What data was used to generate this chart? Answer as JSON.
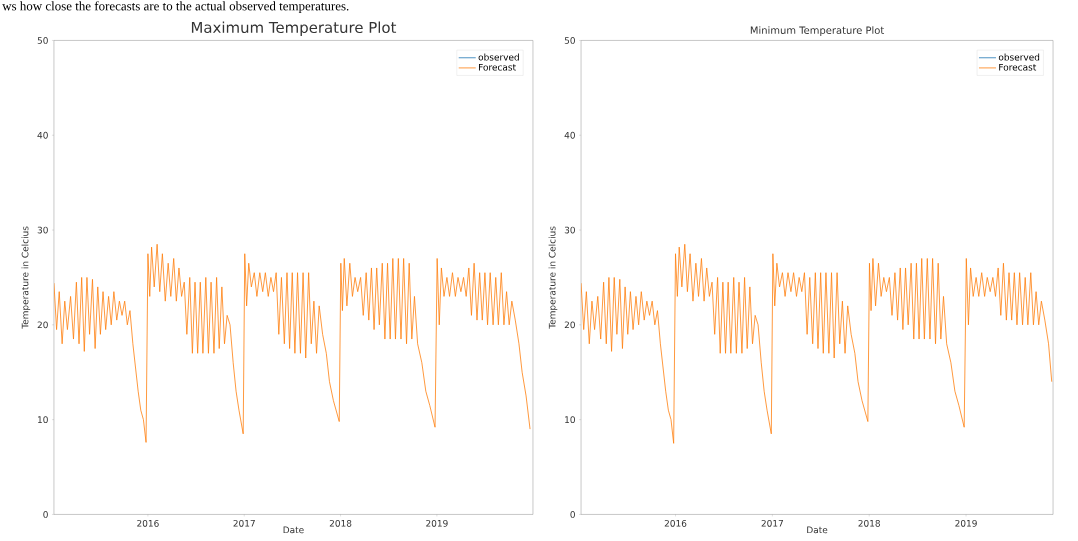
{
  "chart_data": [
    {
      "type": "line",
      "title": "Maximum Temperature Plot",
      "xlabel": "Date",
      "ylabel": "Temperature in Celcius",
      "annotations": [
        "ws how close the forecasts are to the actual observed temperatures."
      ],
      "xlim": [
        "2015-01-10",
        "2019-12-31"
      ],
      "ylim": [
        0,
        50
      ],
      "xticks": [
        "2016",
        "2017",
        "2018",
        "2019"
      ],
      "yticks": [
        0,
        10,
        20,
        30,
        40,
        50
      ],
      "legend": "top right",
      "marker": "none",
      "line_style": "solid",
      "x": [
        "2015-01-10",
        "2015-01-20",
        "2015-01-30",
        "2015-02-10",
        "2015-02-20",
        "2015-03-02",
        "2015-03-14",
        "2015-03-25",
        "2015-04-05",
        "2015-04-15",
        "2015-04-25",
        "2015-05-05",
        "2015-05-15",
        "2015-05-25",
        "2015-06-05",
        "2015-06-15",
        "2015-06-25",
        "2015-07-05",
        "2015-07-15",
        "2015-07-25",
        "2015-08-05",
        "2015-08-15",
        "2015-08-25",
        "2015-09-05",
        "2015-09-15",
        "2015-09-25",
        "2015-10-05",
        "2015-10-15",
        "2015-10-25",
        "2015-11-05",
        "2015-11-15",
        "2015-11-25",
        "2015-12-05",
        "2015-12-15",
        "2015-12-25",
        "2016-01-01",
        "2016-01-08",
        "2016-01-15",
        "2016-01-25",
        "2016-02-05",
        "2016-02-15",
        "2016-02-25",
        "2016-03-07",
        "2016-03-18",
        "2016-03-28",
        "2016-04-08",
        "2016-04-18",
        "2016-04-28",
        "2016-05-08",
        "2016-05-18",
        "2016-05-28",
        "2016-06-08",
        "2016-06-18",
        "2016-06-28",
        "2016-07-08",
        "2016-07-18",
        "2016-07-28",
        "2016-08-08",
        "2016-08-18",
        "2016-08-28",
        "2016-09-08",
        "2016-09-18",
        "2016-09-28",
        "2016-10-08",
        "2016-10-18",
        "2016-10-28",
        "2016-11-08",
        "2016-11-20",
        "2016-12-01",
        "2016-12-12",
        "2016-12-28",
        "2017-01-03",
        "2017-01-10",
        "2017-01-18",
        "2017-01-28",
        "2017-02-08",
        "2017-02-18",
        "2017-03-01",
        "2017-03-12",
        "2017-03-22",
        "2017-04-02",
        "2017-04-12",
        "2017-04-22",
        "2017-05-02",
        "2017-05-12",
        "2017-05-22",
        "2017-06-02",
        "2017-06-12",
        "2017-06-22",
        "2017-07-02",
        "2017-07-12",
        "2017-07-22",
        "2017-08-02",
        "2017-08-12",
        "2017-08-22",
        "2017-09-02",
        "2017-09-12",
        "2017-09-22",
        "2017-10-02",
        "2017-10-12",
        "2017-10-25",
        "2017-11-08",
        "2017-11-20",
        "2017-12-05",
        "2017-12-27",
        "2018-01-02",
        "2018-01-08",
        "2018-01-15",
        "2018-01-25",
        "2018-02-05",
        "2018-02-15",
        "2018-02-25",
        "2018-03-07",
        "2018-03-18",
        "2018-03-28",
        "2018-04-08",
        "2018-04-18",
        "2018-04-28",
        "2018-05-08",
        "2018-05-18",
        "2018-05-28",
        "2018-06-08",
        "2018-06-18",
        "2018-06-28",
        "2018-07-08",
        "2018-07-18",
        "2018-07-28",
        "2018-08-08",
        "2018-08-18",
        "2018-08-28",
        "2018-09-08",
        "2018-09-18",
        "2018-09-28",
        "2018-10-08",
        "2018-10-20",
        "2018-11-05",
        "2018-11-20",
        "2018-12-05",
        "2018-12-25",
        "2019-01-02",
        "2019-01-10",
        "2019-01-18",
        "2019-01-28",
        "2019-02-08",
        "2019-02-18",
        "2019-03-01",
        "2019-03-12",
        "2019-03-22",
        "2019-04-02",
        "2019-04-12",
        "2019-04-22",
        "2019-05-02",
        "2019-05-12",
        "2019-05-22",
        "2019-06-02",
        "2019-06-12",
        "2019-06-22",
        "2019-07-02",
        "2019-07-12",
        "2019-07-22",
        "2019-08-02",
        "2019-08-12",
        "2019-08-22",
        "2019-09-02",
        "2019-09-12",
        "2019-09-22",
        "2019-10-02",
        "2019-10-12",
        "2019-10-25",
        "2019-11-08",
        "2019-11-20",
        "2019-12-05",
        "2019-12-20"
      ],
      "series": [
        {
          "name": "observed",
          "color": "#1f77b4",
          "values": [
            null,
            null,
            null,
            null,
            null,
            null,
            null,
            null,
            null,
            null,
            null,
            null,
            null,
            null,
            null,
            null,
            null,
            null,
            null,
            null,
            null,
            null,
            null,
            null,
            null,
            null,
            null,
            null,
            null,
            null,
            null,
            null,
            null,
            null,
            null,
            null,
            null,
            null,
            null,
            null,
            null,
            null,
            null,
            null,
            null,
            null,
            null,
            null,
            null,
            null,
            null,
            null,
            null,
            null,
            null,
            null,
            null,
            null,
            null,
            null,
            null,
            null,
            null,
            null,
            null,
            null,
            null,
            null,
            null,
            null,
            null,
            null,
            null,
            null,
            null,
            null,
            null,
            null,
            null,
            null,
            null,
            null,
            null,
            null,
            null,
            null,
            null,
            null,
            null,
            null,
            null,
            null,
            null,
            null,
            null,
            null,
            null,
            null,
            null,
            null,
            null,
            null,
            null,
            null,
            null,
            null,
            null,
            null,
            null,
            null,
            null,
            null,
            null,
            null,
            null,
            null,
            null,
            null,
            null,
            null,
            null,
            null,
            null,
            null,
            null,
            null,
            null,
            null,
            null,
            null,
            null,
            null,
            null,
            null,
            null,
            null,
            null,
            null,
            null,
            null,
            null,
            null,
            null,
            null,
            null,
            null,
            null,
            null,
            null,
            null,
            null,
            null,
            null,
            null,
            null,
            null,
            null,
            null,
            null,
            null,
            null,
            null,
            null,
            null,
            null,
            null,
            null,
            null,
            null,
            null,
            null,
            null,
            null
          ]
        },
        {
          "name": "Forecast",
          "color": "#ff7f0e",
          "values": [
            24.4,
            19.5,
            23.5,
            18,
            22.5,
            19.5,
            23,
            18.5,
            24.5,
            18,
            25,
            17.2,
            25,
            19,
            24.8,
            17.5,
            24,
            19,
            23.5,
            19.5,
            23,
            20,
            23.5,
            20.5,
            22.5,
            21,
            22.5,
            20,
            21.5,
            18,
            15.5,
            13,
            11,
            10,
            7.6,
            27.5,
            23,
            28.2,
            24,
            28.5,
            23.5,
            27.5,
            22.5,
            26.5,
            23,
            27,
            22.5,
            26,
            23,
            24.5,
            19,
            25,
            17,
            24.5,
            17,
            24.5,
            17,
            25,
            17,
            24.5,
            17,
            25,
            17.5,
            24,
            18,
            21,
            20,
            16,
            13,
            11,
            8.5,
            27.5,
            22,
            26.5,
            24,
            25.5,
            23,
            25.5,
            23.5,
            25.5,
            23,
            25,
            23.5,
            25.5,
            19,
            25,
            18,
            25.5,
            17.5,
            25.5,
            17,
            25.5,
            17,
            25.5,
            16.5,
            25.5,
            18,
            22.5,
            17,
            22,
            19,
            17,
            14,
            12,
            9.8,
            26.5,
            21.5,
            27,
            22,
            26.5,
            23,
            25,
            23.5,
            25,
            21,
            25.5,
            20.5,
            26,
            19.5,
            26,
            20,
            26.5,
            18.5,
            26.5,
            18.5,
            27,
            18.5,
            27,
            18.5,
            27,
            18,
            26.5,
            18.5,
            23,
            18,
            16,
            13,
            11.5,
            9.2,
            27,
            20,
            26,
            23,
            25,
            23,
            25.5,
            23,
            25,
            23.5,
            25,
            23,
            26,
            21,
            26.5,
            20.5,
            25.5,
            20.5,
            25.5,
            20,
            25.5,
            20,
            25,
            20,
            25.5,
            20,
            23.5,
            20,
            22.5,
            20.5,
            18,
            15,
            12.5,
            9
          ]
        }
      ]
    },
    {
      "type": "line",
      "title": "Minimum Temperature Plot",
      "xlabel": "Date",
      "ylabel": "Temperature in Celcius",
      "xlim": [
        "2015-01-10",
        "2019-11-25"
      ],
      "ylim": [
        0,
        50
      ],
      "xticks": [
        "2016",
        "2017",
        "2018",
        "2019"
      ],
      "yticks": [
        0,
        10,
        20,
        30,
        40,
        50
      ],
      "legend": "top right",
      "marker": "none",
      "line_style": "solid",
      "x": [
        "2015-01-10",
        "2015-01-20",
        "2015-01-30",
        "2015-02-10",
        "2015-02-20",
        "2015-03-02",
        "2015-03-14",
        "2015-03-25",
        "2015-04-05",
        "2015-04-15",
        "2015-04-25",
        "2015-05-05",
        "2015-05-15",
        "2015-05-25",
        "2015-06-05",
        "2015-06-15",
        "2015-06-25",
        "2015-07-05",
        "2015-07-15",
        "2015-07-25",
        "2015-08-05",
        "2015-08-15",
        "2015-08-25",
        "2015-09-05",
        "2015-09-15",
        "2015-09-25",
        "2015-10-05",
        "2015-10-15",
        "2015-10-25",
        "2015-11-05",
        "2015-11-15",
        "2015-11-25",
        "2015-12-05",
        "2015-12-15",
        "2015-12-25",
        "2016-01-01",
        "2016-01-08",
        "2016-01-15",
        "2016-01-25",
        "2016-02-05",
        "2016-02-15",
        "2016-02-25",
        "2016-03-07",
        "2016-03-18",
        "2016-03-28",
        "2016-04-08",
        "2016-04-18",
        "2016-04-28",
        "2016-05-08",
        "2016-05-18",
        "2016-05-28",
        "2016-06-08",
        "2016-06-18",
        "2016-06-28",
        "2016-07-08",
        "2016-07-18",
        "2016-07-28",
        "2016-08-08",
        "2016-08-18",
        "2016-08-28",
        "2016-09-08",
        "2016-09-18",
        "2016-09-28",
        "2016-10-08",
        "2016-10-18",
        "2016-10-28",
        "2016-11-08",
        "2016-11-20",
        "2016-12-01",
        "2016-12-12",
        "2016-12-28",
        "2017-01-03",
        "2017-01-10",
        "2017-01-18",
        "2017-01-28",
        "2017-02-08",
        "2017-02-18",
        "2017-03-01",
        "2017-03-12",
        "2017-03-22",
        "2017-04-02",
        "2017-04-12",
        "2017-04-22",
        "2017-05-02",
        "2017-05-12",
        "2017-05-22",
        "2017-06-02",
        "2017-06-12",
        "2017-06-22",
        "2017-07-02",
        "2017-07-12",
        "2017-07-22",
        "2017-08-02",
        "2017-08-12",
        "2017-08-22",
        "2017-09-02",
        "2017-09-12",
        "2017-09-22",
        "2017-10-02",
        "2017-10-12",
        "2017-10-25",
        "2017-11-08",
        "2017-11-20",
        "2017-12-05",
        "2017-12-27",
        "2018-01-02",
        "2018-01-08",
        "2018-01-15",
        "2018-01-25",
        "2018-02-05",
        "2018-02-15",
        "2018-02-25",
        "2018-03-07",
        "2018-03-18",
        "2018-03-28",
        "2018-04-08",
        "2018-04-18",
        "2018-04-28",
        "2018-05-08",
        "2018-05-18",
        "2018-05-28",
        "2018-06-08",
        "2018-06-18",
        "2018-06-28",
        "2018-07-08",
        "2018-07-18",
        "2018-07-28",
        "2018-08-08",
        "2018-08-18",
        "2018-08-28",
        "2018-09-08",
        "2018-09-18",
        "2018-09-28",
        "2018-10-08",
        "2018-10-20",
        "2018-11-05",
        "2018-11-20",
        "2018-12-05",
        "2018-12-25",
        "2019-01-02",
        "2019-01-10",
        "2019-01-18",
        "2019-01-28",
        "2019-02-08",
        "2019-02-18",
        "2019-03-01",
        "2019-03-12",
        "2019-03-22",
        "2019-04-02",
        "2019-04-12",
        "2019-04-22",
        "2019-05-02",
        "2019-05-12",
        "2019-05-22",
        "2019-06-02",
        "2019-06-12",
        "2019-06-22",
        "2019-07-02",
        "2019-07-12",
        "2019-07-22",
        "2019-08-02",
        "2019-08-12",
        "2019-08-22",
        "2019-09-02",
        "2019-09-12",
        "2019-09-22",
        "2019-10-02",
        "2019-10-12",
        "2019-10-25",
        "2019-11-08",
        "2019-11-20"
      ],
      "series": [
        {
          "name": "observed",
          "color": "#1f77b4",
          "values": [
            null,
            null,
            null,
            null,
            null,
            null,
            null,
            null,
            null,
            null,
            null,
            null,
            null,
            null,
            null,
            null,
            null,
            null,
            null,
            null,
            null,
            null,
            null,
            null,
            null,
            null,
            null,
            null,
            null,
            null,
            null,
            null,
            null,
            null,
            null,
            null,
            null,
            null,
            null,
            null,
            null,
            null,
            null,
            null,
            null,
            null,
            null,
            null,
            null,
            null,
            null,
            null,
            null,
            null,
            null,
            null,
            null,
            null,
            null,
            null,
            null,
            null,
            null,
            null,
            null,
            null,
            null,
            null,
            null,
            null,
            null,
            null,
            null,
            null,
            null,
            null,
            null,
            null,
            null,
            null,
            null,
            null,
            null,
            null,
            null,
            null,
            null,
            null,
            null,
            null,
            null,
            null,
            null,
            null,
            null,
            null,
            null,
            null,
            null,
            null,
            null,
            null,
            null,
            null,
            null,
            null,
            null,
            null,
            null,
            null,
            null,
            null,
            null,
            null,
            null,
            null,
            null,
            null,
            null,
            null,
            null,
            null,
            null,
            null,
            null,
            null,
            null,
            null,
            null,
            null,
            null,
            null,
            null,
            null,
            null,
            null,
            null,
            null,
            null,
            null,
            null,
            null,
            null,
            null,
            null,
            null,
            null,
            null,
            null,
            null,
            null,
            null,
            null,
            null,
            null,
            null,
            null,
            null,
            null,
            null,
            null,
            null,
            null,
            null,
            null,
            null,
            null,
            null,
            null,
            null,
            null
          ]
        },
        {
          "name": "Forecast",
          "color": "#ff7f0e",
          "values": [
            24.4,
            19.5,
            23.5,
            18,
            22.5,
            19.5,
            23,
            18.5,
            24.5,
            18,
            25,
            17.2,
            25,
            19,
            24.8,
            17.5,
            24,
            19,
            23.5,
            19.5,
            23,
            20,
            23.5,
            20.5,
            22.5,
            21,
            22.5,
            20,
            21.5,
            18,
            15.5,
            13,
            11,
            10,
            7.5,
            27.5,
            23,
            28.2,
            24,
            28.5,
            23.5,
            27.5,
            22.5,
            26.5,
            23,
            27,
            22.5,
            26,
            23,
            24.5,
            19,
            25,
            17,
            24.5,
            17,
            24.5,
            17,
            25,
            17,
            24.5,
            17,
            25,
            17.5,
            24,
            18,
            21,
            20,
            16,
            13,
            11,
            8.5,
            27.5,
            22,
            26.5,
            24,
            25.5,
            23,
            25.5,
            23.5,
            25.5,
            23,
            25,
            23.5,
            25.5,
            19,
            25,
            18,
            25.5,
            17.5,
            25.5,
            17,
            25.5,
            17,
            25.5,
            16.5,
            25.5,
            18,
            22.5,
            17,
            22,
            19,
            17,
            14,
            12,
            9.8,
            26.5,
            21.5,
            27,
            22,
            26.5,
            23,
            25,
            23.5,
            25,
            21,
            25.5,
            20.5,
            26,
            19.5,
            26,
            20,
            26.5,
            18.5,
            26.5,
            18.5,
            27,
            18.5,
            27,
            18.5,
            27,
            18,
            26.5,
            18.5,
            23,
            18,
            16,
            13,
            11.5,
            9.2,
            27,
            20,
            26,
            23,
            25,
            23,
            25.5,
            23,
            25,
            23.5,
            25,
            23,
            26,
            21,
            26.5,
            20.5,
            25.5,
            20.5,
            25.5,
            20,
            25.5,
            20,
            25,
            20,
            25.5,
            20,
            23.5,
            20,
            22.5,
            20.5,
            18,
            14
          ]
        }
      ]
    }
  ]
}
